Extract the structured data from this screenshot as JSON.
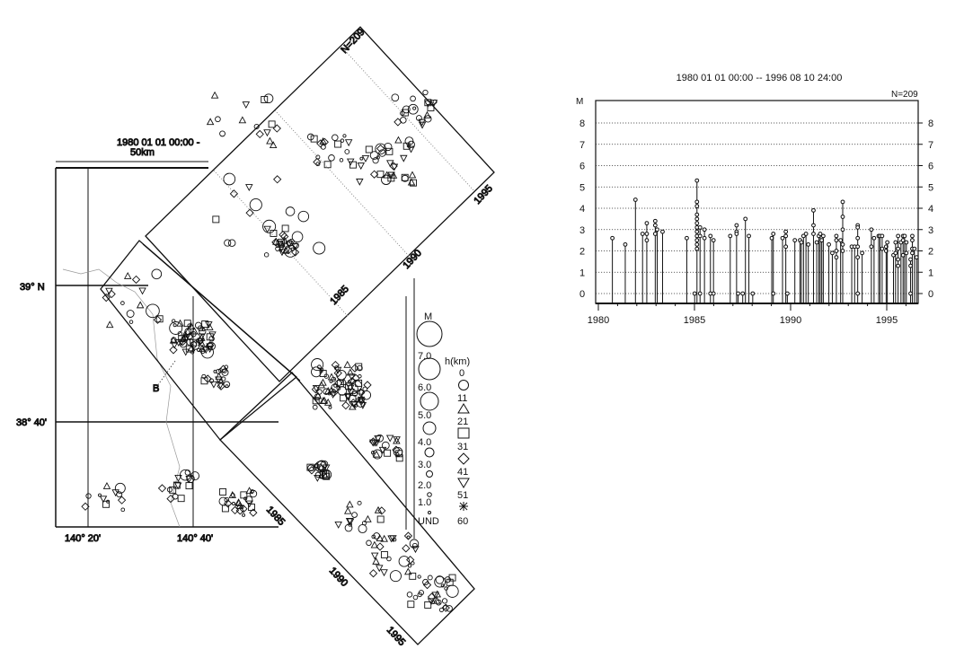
{
  "map": {
    "period_label": "1980 01 01 00:00 -",
    "scale_label": "50km",
    "count_label": "N=209",
    "lat_labels": [
      "39° N",
      "38° 40'"
    ],
    "lon_labels": [
      "140° 20'",
      "140° 40'"
    ],
    "section_label": "B",
    "upper_box_years": [
      "1990",
      "1995"
    ],
    "middle_box_years": [
      "1985"
    ],
    "lower_box_years": [
      "1985",
      "1990",
      "1995"
    ]
  },
  "legend": {
    "magnitude_title": "M",
    "magnitude_labels": [
      "7.0",
      "6.0",
      "5.0",
      "4.0",
      "3.0",
      "2.0",
      "1.0",
      "UND"
    ],
    "depth_title": "h(km)",
    "depth_labels": [
      "0",
      "11",
      "21",
      "31",
      "41",
      "51",
      "60"
    ],
    "depth_symbols": [
      "circle",
      "triangle",
      "square",
      "diamond",
      "inverted-triangle",
      "asterisk"
    ]
  },
  "chart_data": {
    "type": "stem",
    "title": "1980 01 01 00:00 -- 1996 08 10 24:00",
    "count_label": "N=209",
    "ylabel": "M",
    "xlim": [
      1980,
      1996.6
    ],
    "ylim": [
      -0.5,
      8.9
    ],
    "xticks": [
      "1980",
      "1985",
      "1990",
      "1995"
    ],
    "yticks": [
      "0",
      "1",
      "2",
      "3",
      "4",
      "5",
      "6",
      "7",
      "8"
    ],
    "grid": "horizontal dotted",
    "events": [
      {
        "t": 1980.73,
        "m": [
          2.6
        ]
      },
      {
        "t": 1981.4,
        "m": [
          2.3
        ]
      },
      {
        "t": 1981.93,
        "m": [
          4.4
        ]
      },
      {
        "t": 1982.3,
        "m": [
          2.8
        ]
      },
      {
        "t": 1982.52,
        "m": [
          3.3,
          2.8,
          2.5
        ]
      },
      {
        "t": 1982.96,
        "m": [
          3.4,
          3.2,
          2.8
        ]
      },
      {
        "t": 1983.06,
        "m": [
          3.0
        ]
      },
      {
        "t": 1983.34,
        "m": [
          2.9
        ]
      },
      {
        "t": 1984.6,
        "m": [
          2.6
        ]
      },
      {
        "t": 1985.01,
        "m": [
          0
        ]
      },
      {
        "t": 1985.13,
        "m": [
          5.3,
          4.3,
          4.1,
          3.7,
          3.5,
          3.3,
          3.1,
          2.9,
          2.7,
          2.5,
          2.3,
          2.1
        ]
      },
      {
        "t": 1985.29,
        "m": [
          3.1,
          2.7,
          0
        ]
      },
      {
        "t": 1985.52,
        "m": [
          3.0,
          2.6
        ]
      },
      {
        "t": 1985.83,
        "m": [
          2.7,
          0
        ]
      },
      {
        "t": 1985.99,
        "m": [
          2.5,
          0
        ]
      },
      {
        "t": 1986.86,
        "m": [
          2.7
        ]
      },
      {
        "t": 1987.19,
        "m": [
          3.2,
          2.9,
          2.8
        ]
      },
      {
        "t": 1987.27,
        "m": [
          0
        ]
      },
      {
        "t": 1987.51,
        "m": [
          0
        ]
      },
      {
        "t": 1987.65,
        "m": [
          3.5
        ]
      },
      {
        "t": 1987.83,
        "m": [
          2.7
        ]
      },
      {
        "t": 1988.03,
        "m": [
          0
        ]
      },
      {
        "t": 1989.02,
        "m": [
          2.6
        ]
      },
      {
        "t": 1989.1,
        "m": [
          2.8,
          0
        ]
      },
      {
        "t": 1989.58,
        "m": [
          2.6
        ]
      },
      {
        "t": 1989.75,
        "m": [
          2.9,
          2.7,
          2.2
        ]
      },
      {
        "t": 1989.83,
        "m": [
          0
        ]
      },
      {
        "t": 1990.22,
        "m": [
          2.5
        ]
      },
      {
        "t": 1990.49,
        "m": [
          2.5
        ]
      },
      {
        "t": 1990.56,
        "m": [
          2.4
        ]
      },
      {
        "t": 1990.67,
        "m": [
          2.7
        ]
      },
      {
        "t": 1990.8,
        "m": [
          2.8
        ]
      },
      {
        "t": 1990.92,
        "m": [
          2.3
        ]
      },
      {
        "t": 1991.19,
        "m": [
          3.9,
          3.2,
          2.8
        ]
      },
      {
        "t": 1991.36,
        "m": [
          2.4
        ]
      },
      {
        "t": 1991.47,
        "m": [
          2.7
        ]
      },
      {
        "t": 1991.54,
        "m": [
          2.8
        ]
      },
      {
        "t": 1991.62,
        "m": [
          2.5
        ]
      },
      {
        "t": 1991.7,
        "m": [
          2.7
        ]
      },
      {
        "t": 1991.99,
        "m": [
          2.3
        ]
      },
      {
        "t": 1992.17,
        "m": [
          1.9
        ]
      },
      {
        "t": 1992.38,
        "m": [
          2.7,
          2.5,
          2.0,
          1.7
        ]
      },
      {
        "t": 1992.6,
        "m": [
          2.5
        ]
      },
      {
        "t": 1992.71,
        "m": [
          4.3,
          3.6,
          3.0,
          2.3,
          2.0
        ]
      },
      {
        "t": 1993.18,
        "m": [
          2.2
        ]
      },
      {
        "t": 1993.33,
        "m": [
          2.2
        ]
      },
      {
        "t": 1993.49,
        "m": [
          3.2,
          3.1,
          2.6,
          2.2,
          1.7,
          0
        ]
      },
      {
        "t": 1993.72,
        "m": [
          1.9
        ]
      },
      {
        "t": 1994.2,
        "m": [
          3.0,
          2.2
        ]
      },
      {
        "t": 1994.34,
        "m": [
          2.6
        ]
      },
      {
        "t": 1994.58,
        "m": [
          2.7
        ]
      },
      {
        "t": 1994.65,
        "m": [
          2.7
        ]
      },
      {
        "t": 1994.76,
        "m": [
          2.7,
          2.1
        ]
      },
      {
        "t": 1994.97,
        "m": [
          2.2,
          2.0
        ]
      },
      {
        "t": 1995.03,
        "m": [
          2.4
        ]
      },
      {
        "t": 1995.35,
        "m": [
          1.8
        ]
      },
      {
        "t": 1995.46,
        "m": [
          2.4,
          1.9
        ]
      },
      {
        "t": 1995.59,
        "m": [
          2.7,
          2.1,
          1.6,
          1.3
        ]
      },
      {
        "t": 1995.74,
        "m": [
          2.4
        ]
      },
      {
        "t": 1995.85,
        "m": [
          2.7,
          2.5,
          1.8
        ]
      },
      {
        "t": 1995.93,
        "m": [
          2.7
        ]
      },
      {
        "t": 1996.02,
        "m": [
          2.4,
          1.9
        ]
      },
      {
        "t": 1996.24,
        "m": [
          1.6,
          1.3,
          0
        ]
      },
      {
        "t": 1996.33,
        "m": [
          2.7,
          2.5,
          2.1,
          1.9
        ]
      },
      {
        "t": 1996.44,
        "m": [
          2.1
        ]
      },
      {
        "t": 1996.55,
        "m": [
          1.7
        ]
      }
    ]
  }
}
